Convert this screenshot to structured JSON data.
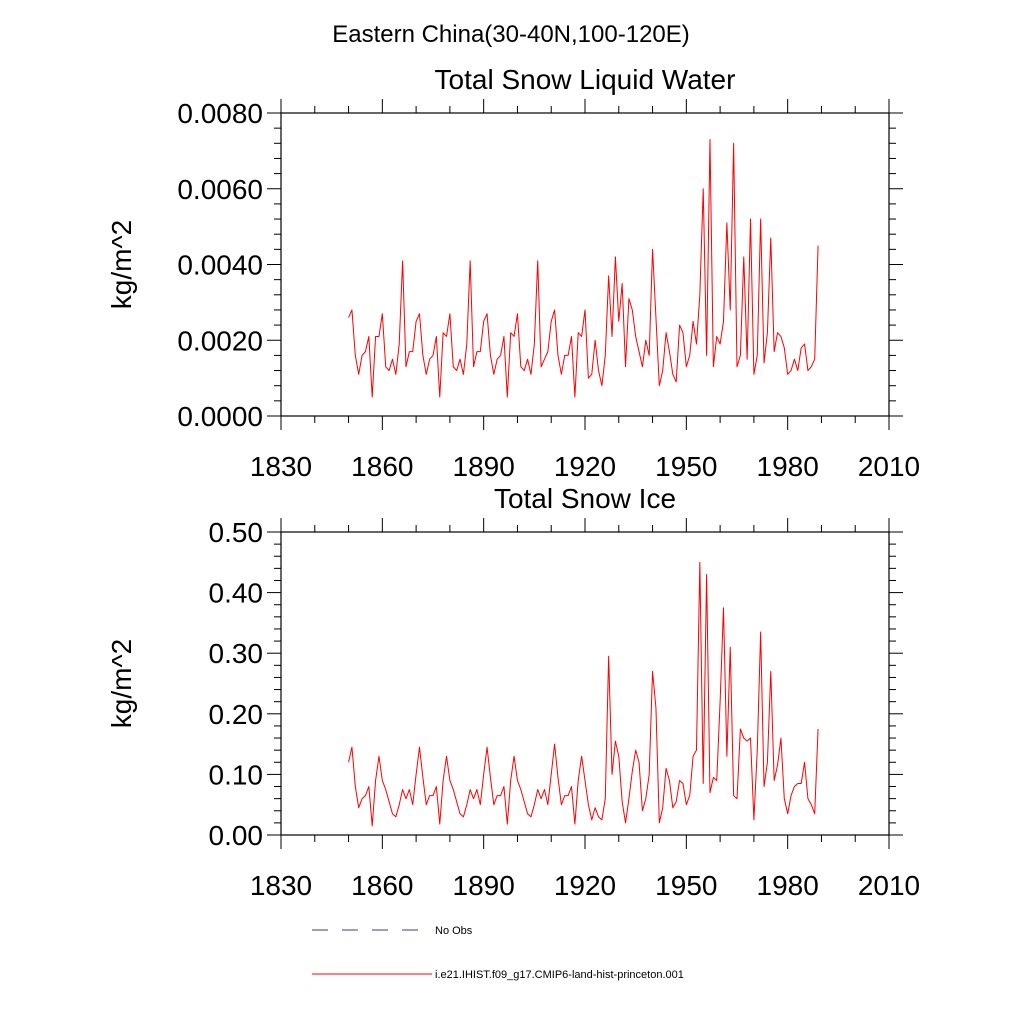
{
  "figure_title": "Eastern China(30-40N,100-120E)",
  "colors": {
    "series": "#ff0000",
    "no_obs": "#3b3b8f",
    "axes": "#000000"
  },
  "legend": {
    "entries": [
      {
        "label": "No Obs",
        "style": "dashed",
        "color": "#3b3b8f"
      },
      {
        "label": "i.e21.IHIST.f09_g17.CMIP6-land-hist-princeton.001",
        "style": "solid",
        "color": "#ff0000"
      }
    ]
  },
  "chart_data": [
    {
      "type": "line",
      "title": "Total Snow Liquid Water",
      "xlabel": "",
      "ylabel": "kg/m^2",
      "xlim": [
        1830,
        2010
      ],
      "ylim": [
        0,
        0.008
      ],
      "xticks": [
        "1830",
        "1860",
        "1890",
        "1920",
        "1950",
        "1980",
        "2010"
      ],
      "yticks": [
        "0.0000",
        "0.0020",
        "0.0040",
        "0.0060",
        "0.0080"
      ],
      "grid": false,
      "series": [
        {
          "x_start": 1850,
          "color": "#ff0000",
          "values": [
            0.0026,
            0.0028,
            0.0016,
            0.0011,
            0.0016,
            0.0017,
            0.0021,
            0.0005,
            0.0021,
            0.0021,
            0.0027,
            0.0013,
            0.0012,
            0.0015,
            0.0011,
            0.0019,
            0.0041,
            0.0013,
            0.0017,
            0.0017,
            0.0025,
            0.0027,
            0.0016,
            0.0011,
            0.0015,
            0.0016,
            0.0021,
            0.0005,
            0.0022,
            0.0021,
            0.0027,
            0.0013,
            0.0012,
            0.0015,
            0.0011,
            0.0019,
            0.0041,
            0.0013,
            0.0017,
            0.0017,
            0.0025,
            0.0027,
            0.0016,
            0.0011,
            0.0015,
            0.0016,
            0.0021,
            0.0005,
            0.0022,
            0.0021,
            0.0027,
            0.0013,
            0.0012,
            0.0015,
            0.0011,
            0.0019,
            0.0041,
            0.0013,
            0.0015,
            0.0017,
            0.0025,
            0.0028,
            0.0016,
            0.0011,
            0.0016,
            0.0016,
            0.0021,
            0.0005,
            0.0022,
            0.0021,
            0.0028,
            0.001,
            0.0011,
            0.002,
            0.0012,
            0.0008,
            0.0016,
            0.0037,
            0.0021,
            0.0042,
            0.0025,
            0.0035,
            0.0013,
            0.0031,
            0.0028,
            0.0021,
            0.0017,
            0.0013,
            0.002,
            0.0016,
            0.0044,
            0.0026,
            0.0008,
            0.0012,
            0.0022,
            0.0017,
            0.0011,
            0.0009,
            0.0024,
            0.0022,
            0.0013,
            0.0016,
            0.0025,
            0.0019,
            0.0032,
            0.006,
            0.0016,
            0.0073,
            0.0013,
            0.0021,
            0.0019,
            0.0025,
            0.0051,
            0.0028,
            0.0072,
            0.0013,
            0.0016,
            0.0042,
            0.0015,
            0.0052,
            0.0011,
            0.0016,
            0.0052,
            0.0014,
            0.0022,
            0.0047,
            0.0017,
            0.0022,
            0.0021,
            0.0018,
            0.0011,
            0.0012,
            0.0015,
            0.0012,
            0.0018,
            0.0019,
            0.0012,
            0.0013,
            0.0015,
            0.0045
          ]
        }
      ]
    },
    {
      "type": "line",
      "title": "Total Snow Ice",
      "xlabel": "",
      "ylabel": "kg/m^2",
      "xlim": [
        1830,
        2010
      ],
      "ylim": [
        0,
        0.5
      ],
      "xticks": [
        "1830",
        "1860",
        "1890",
        "1920",
        "1950",
        "1980",
        "2010"
      ],
      "yticks": [
        "0.00",
        "0.10",
        "0.20",
        "0.30",
        "0.40",
        "0.50"
      ],
      "grid": false,
      "series": [
        {
          "x_start": 1850,
          "color": "#ff0000",
          "values": [
            0.12,
            0.145,
            0.08,
            0.045,
            0.06,
            0.065,
            0.08,
            0.015,
            0.09,
            0.13,
            0.09,
            0.075,
            0.055,
            0.035,
            0.03,
            0.05,
            0.075,
            0.06,
            0.075,
            0.05,
            0.1,
            0.145,
            0.095,
            0.05,
            0.065,
            0.065,
            0.08,
            0.018,
            0.09,
            0.13,
            0.09,
            0.075,
            0.055,
            0.035,
            0.03,
            0.05,
            0.075,
            0.06,
            0.075,
            0.05,
            0.1,
            0.145,
            0.095,
            0.05,
            0.065,
            0.065,
            0.08,
            0.018,
            0.09,
            0.13,
            0.09,
            0.075,
            0.055,
            0.035,
            0.03,
            0.05,
            0.075,
            0.06,
            0.075,
            0.05,
            0.1,
            0.15,
            0.095,
            0.05,
            0.065,
            0.065,
            0.08,
            0.018,
            0.09,
            0.13,
            0.09,
            0.05,
            0.025,
            0.045,
            0.03,
            0.025,
            0.06,
            0.295,
            0.1,
            0.155,
            0.13,
            0.055,
            0.02,
            0.06,
            0.105,
            0.14,
            0.12,
            0.04,
            0.06,
            0.1,
            0.27,
            0.21,
            0.02,
            0.045,
            0.11,
            0.09,
            0.045,
            0.055,
            0.09,
            0.085,
            0.05,
            0.065,
            0.13,
            0.14,
            0.45,
            0.085,
            0.43,
            0.07,
            0.095,
            0.09,
            0.22,
            0.375,
            0.13,
            0.31,
            0.065,
            0.06,
            0.175,
            0.16,
            0.155,
            0.16,
            0.025,
            0.14,
            0.335,
            0.08,
            0.12,
            0.27,
            0.09,
            0.115,
            0.16,
            0.06,
            0.035,
            0.065,
            0.08,
            0.085,
            0.085,
            0.12,
            0.06,
            0.05,
            0.035,
            0.175
          ]
        }
      ]
    }
  ]
}
